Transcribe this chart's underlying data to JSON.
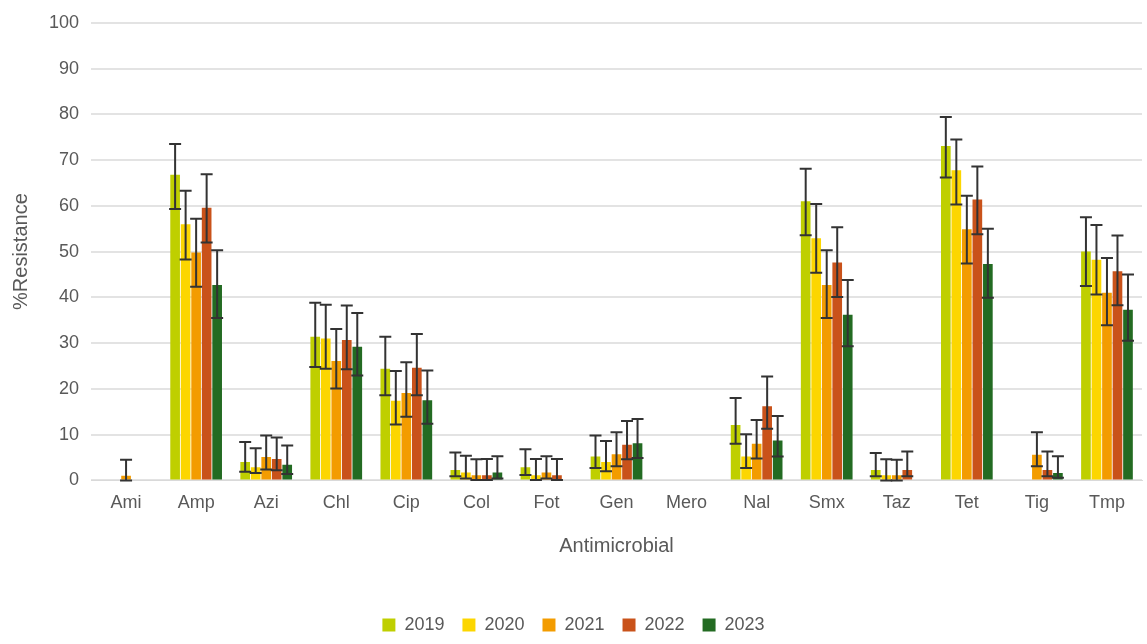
{
  "chart_data": {
    "type": "bar",
    "xlabel": "Antimicrobial",
    "ylabel": "%Resistance",
    "categories": [
      "Ami",
      "Amp",
      "Azi",
      "Chl",
      "Cip",
      "Col",
      "Fot",
      "Gen",
      "Mero",
      "Nal",
      "Smx",
      "Taz",
      "Tet",
      "Tig",
      "Tmp"
    ],
    "ylim": [
      0,
      100
    ],
    "yticks": [
      0,
      10,
      20,
      30,
      40,
      50,
      60,
      70,
      80,
      90,
      100
    ],
    "grid": "y",
    "legend": "bottom",
    "series": [
      {
        "name": "2019",
        "color": "#bfcf00",
        "values": [
          null,
          66.8,
          4.0,
          31.4,
          24.4,
          2.3,
          2.9,
          5.2,
          null,
          12.1,
          61.0,
          2.3,
          73.1,
          null,
          50.0
        ],
        "errors": [
          null,
          [
            59.3,
            73.5
          ],
          [
            1.9,
            8.4
          ],
          [
            24.8,
            38.8
          ],
          [
            18.6,
            31.4
          ],
          [
            0.9,
            6.1
          ],
          [
            1.2,
            6.8
          ],
          [
            2.7,
            9.8
          ],
          null,
          [
            8.0,
            18.0
          ],
          [
            53.6,
            68.1
          ],
          [
            0.9,
            6.0
          ],
          [
            66.2,
            79.4
          ],
          null,
          [
            42.5,
            57.5
          ]
        ]
      },
      {
        "name": "2020",
        "color": "#fcd600",
        "values": [
          null,
          56.0,
          2.9,
          31.0,
          17.4,
          1.7,
          1.1,
          4.0,
          null,
          5.2,
          52.9,
          1.1,
          67.8,
          null,
          48.2
        ],
        "errors": [
          null,
          [
            48.3,
            63.3
          ],
          [
            1.6,
            7.0
          ],
          [
            24.4,
            38.4
          ],
          [
            12.2,
            23.9
          ],
          [
            0.4,
            5.4
          ],
          [
            0.1,
            4.7
          ],
          [
            2.0,
            8.6
          ],
          null,
          [
            2.7,
            10.1
          ],
          [
            45.4,
            60.4
          ],
          [
            0,
            4.6
          ],
          [
            60.3,
            74.5
          ],
          null,
          [
            40.6,
            55.8
          ]
        ]
      },
      {
        "name": "2021",
        "color": "#f39c00",
        "values": [
          1.0,
          49.8,
          5.1,
          26.1,
          19.1,
          1.1,
          1.7,
          5.7,
          null,
          8.0,
          42.7,
          1.1,
          54.9,
          5.6,
          41.0
        ],
        "errors": [
          [
            0,
            4.5
          ],
          [
            42.3,
            57.2
          ],
          [
            2.4,
            9.8
          ],
          [
            20.1,
            33.1
          ],
          [
            13.9,
            25.8
          ],
          [
            0.1,
            4.6
          ],
          [
            0.4,
            5.3
          ],
          [
            3.1,
            10.5
          ],
          null,
          [
            4.8,
            13.2
          ],
          [
            35.5,
            50.3
          ],
          [
            0,
            4.5
          ],
          [
            47.4,
            62.2
          ],
          [
            3.1,
            10.5
          ],
          [
            33.9,
            48.6
          ]
        ]
      },
      {
        "name": "2022",
        "color": "#c9521a",
        "values": [
          null,
          59.6,
          4.7,
          30.7,
          24.6,
          1.1,
          1.1,
          7.8,
          null,
          16.2,
          47.6,
          2.3,
          61.4,
          2.3,
          45.7
        ],
        "errors": [
          null,
          [
            52.0,
            66.9
          ],
          [
            2.2,
            9.4
          ],
          [
            24.3,
            38.2
          ],
          [
            18.6,
            32.0
          ],
          [
            0.1,
            4.7
          ],
          [
            0.1,
            4.7
          ],
          [
            4.6,
            13.0
          ],
          null,
          [
            11.3,
            22.7
          ],
          [
            40.1,
            55.3
          ],
          [
            0.9,
            6.3
          ],
          [
            53.8,
            68.6
          ],
          [
            0.9,
            6.3
          ],
          [
            38.3,
            53.5
          ]
        ]
      },
      {
        "name": "2023",
        "color": "#236b22",
        "values": [
          null,
          42.7,
          3.4,
          29.2,
          17.5,
          1.7,
          null,
          8.1,
          null,
          8.7,
          36.2,
          null,
          47.3,
          1.6,
          37.3
        ],
        "errors": [
          null,
          [
            35.5,
            50.3
          ],
          [
            1.4,
            7.6
          ],
          [
            22.9,
            36.6
          ],
          [
            12.4,
            24.0
          ],
          [
            0.4,
            5.3
          ],
          null,
          [
            4.9,
            13.4
          ],
          null,
          [
            5.2,
            14.1
          ],
          [
            29.3,
            43.8
          ],
          null,
          [
            39.9,
            55.0
          ],
          [
            0.6,
            5.3
          ],
          [
            30.5,
            45.0
          ]
        ]
      }
    ]
  }
}
